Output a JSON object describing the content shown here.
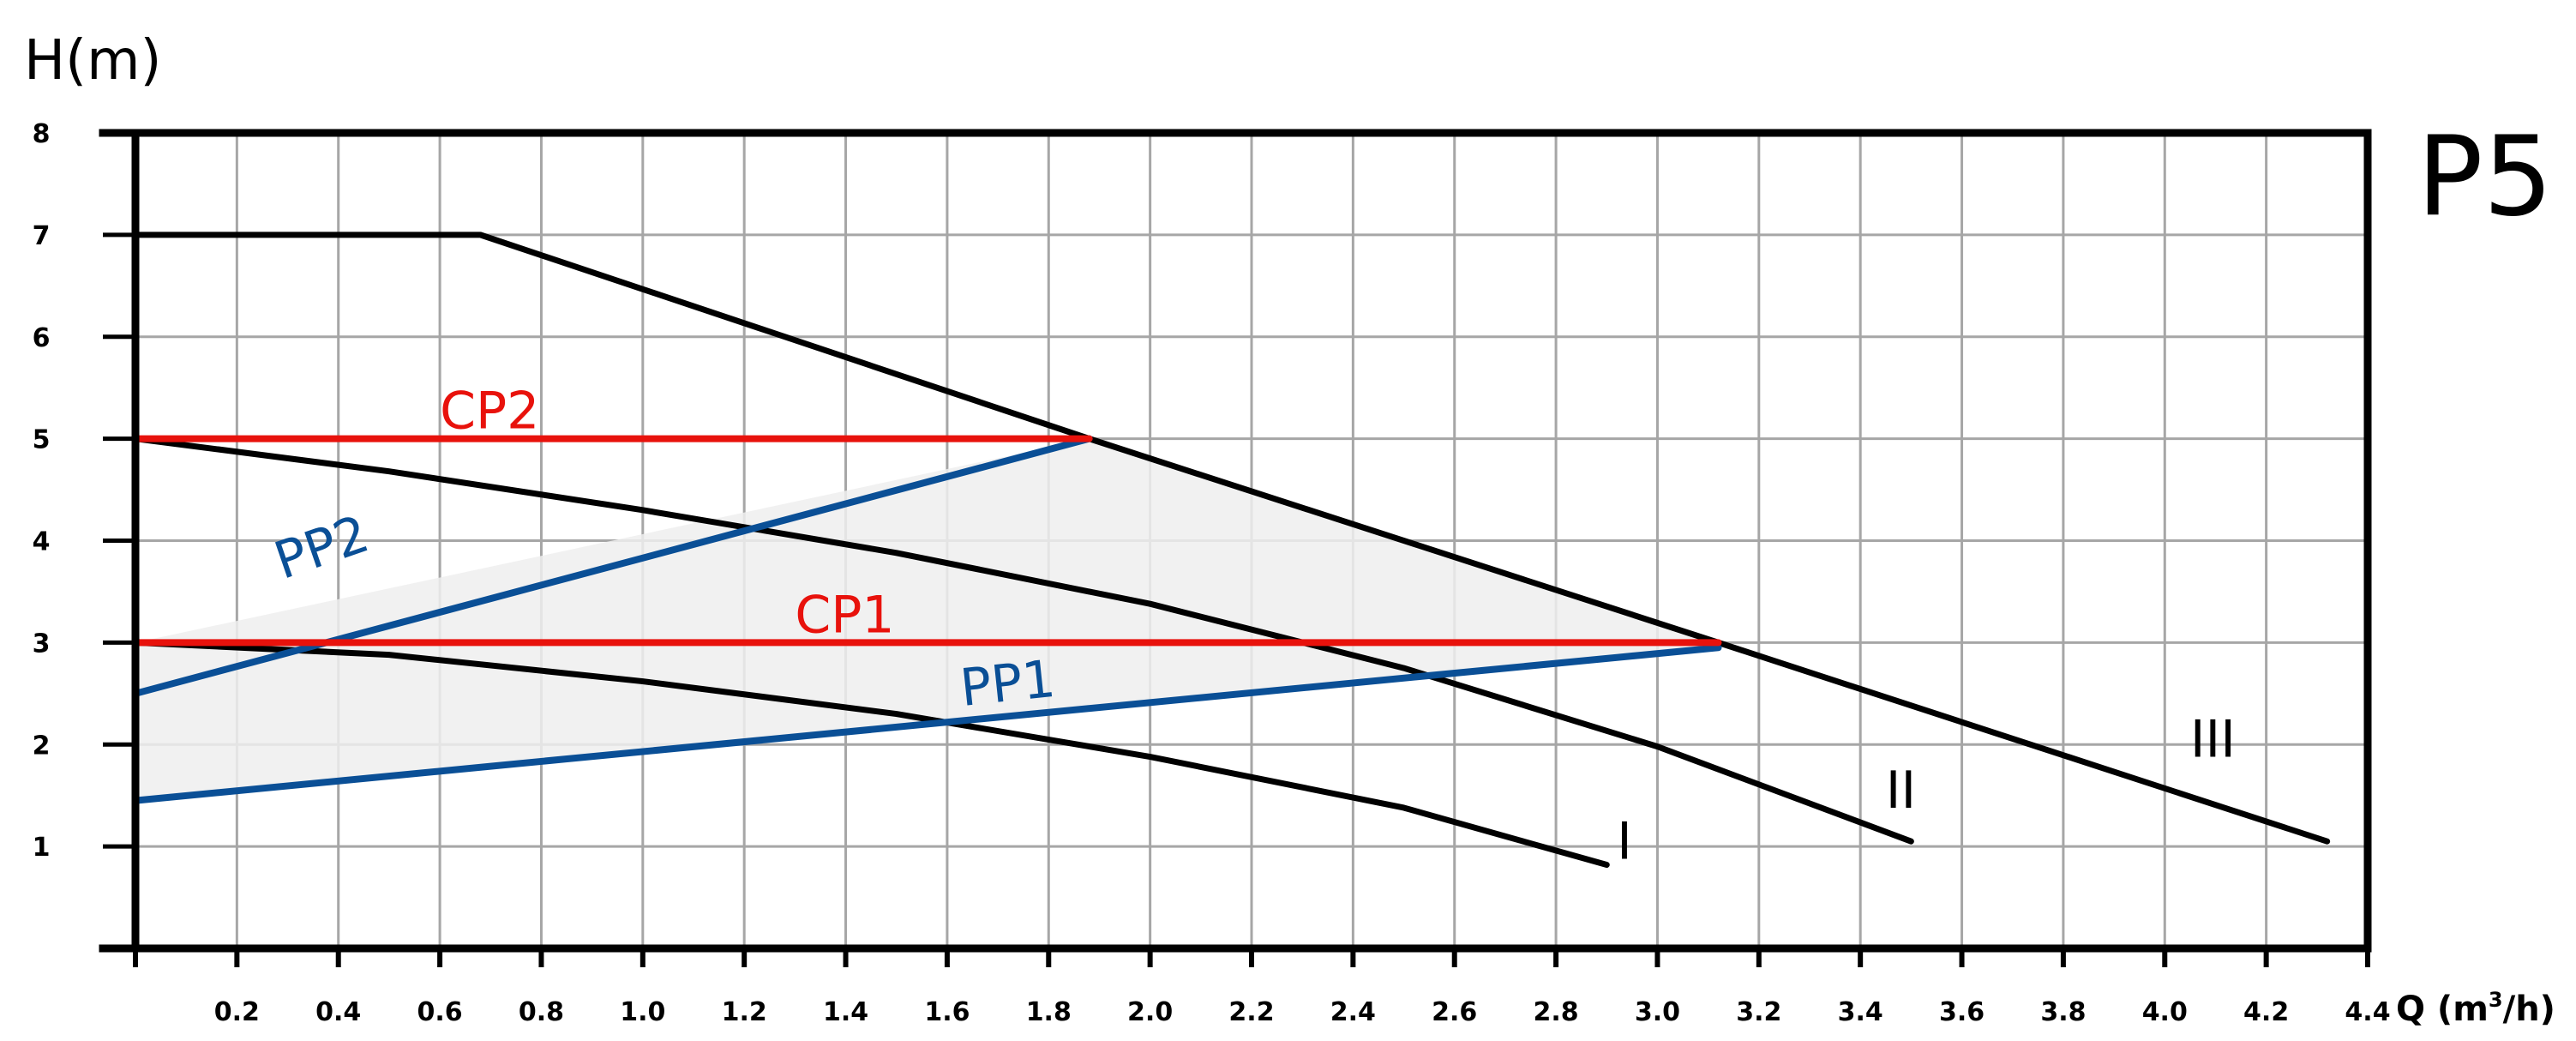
{
  "chart_data": {
    "type": "line",
    "title": "P5",
    "ylabel": "H(m)",
    "xlabel": "Q (m³/h)",
    "xlabel_main": "Q (m",
    "xlabel_sup": "3",
    "xlabel_end": "/h)",
    "xlim": [
      0,
      4.4
    ],
    "ylim": [
      0,
      8
    ],
    "grid": true,
    "x_ticks": [
      "0.2",
      "0.4",
      "0.6",
      "0.8",
      "1.0",
      "1.2",
      "1.4",
      "1.6",
      "1.8",
      "2.0",
      "2.2",
      "2.4",
      "2.6",
      "2.8",
      "3.0",
      "3.2",
      "3.4",
      "3.6",
      "3.8",
      "4.0",
      "4.2",
      "4.4"
    ],
    "y_ticks": [
      "1",
      "2",
      "3",
      "4",
      "5",
      "6",
      "7",
      "8"
    ],
    "shaded_region": [
      [
        0,
        1.45
      ],
      [
        0,
        3.0
      ],
      [
        1.88,
        5.0
      ],
      [
        3.12,
        3.0
      ],
      [
        3.12,
        2.95
      ]
    ],
    "series": [
      {
        "name": "I",
        "color": "#000000",
        "points": [
          [
            0,
            3.0
          ],
          [
            0.5,
            2.88
          ],
          [
            1.0,
            2.62
          ],
          [
            1.5,
            2.3
          ],
          [
            2.0,
            1.88
          ],
          [
            2.5,
            1.38
          ],
          [
            2.9,
            0.82
          ]
        ],
        "label_at": [
          2.92,
          0.88
        ]
      },
      {
        "name": "II",
        "color": "#000000",
        "points": [
          [
            0,
            5.0
          ],
          [
            0.5,
            4.68
          ],
          [
            1.0,
            4.3
          ],
          [
            1.5,
            3.88
          ],
          [
            2.0,
            3.38
          ],
          [
            2.5,
            2.75
          ],
          [
            3.0,
            1.98
          ],
          [
            3.5,
            1.05
          ]
        ],
        "label_at": [
          3.45,
          1.38
        ]
      },
      {
        "name": "III",
        "color": "#000000",
        "points": [
          [
            0,
            7.0
          ],
          [
            0.68,
            7.0
          ],
          [
            1.88,
            5.0
          ],
          [
            3.12,
            3.0
          ],
          [
            4.32,
            1.05
          ]
        ],
        "label_at": [
          4.05,
          1.88
        ]
      },
      {
        "name": "CP1",
        "color": "#e8120c",
        "points": [
          [
            0,
            3.0
          ],
          [
            3.12,
            3.0
          ]
        ],
        "label_at": [
          1.3,
          3.1
        ]
      },
      {
        "name": "CP2",
        "color": "#e8120c",
        "points": [
          [
            0,
            5.0
          ],
          [
            1.88,
            5.0
          ]
        ],
        "label_at": [
          0.6,
          5.1
        ]
      },
      {
        "name": "PP1",
        "color": "#0a4f96",
        "points": [
          [
            0,
            1.45
          ],
          [
            3.12,
            2.95
          ]
        ],
        "label_at": [
          1.63,
          2.38
        ]
      },
      {
        "name": "PP2",
        "color": "#0a4f96",
        "points": [
          [
            0,
            2.5
          ],
          [
            1.88,
            5.0
          ]
        ],
        "label_at": [
          0.29,
          3.62
        ]
      }
    ]
  }
}
